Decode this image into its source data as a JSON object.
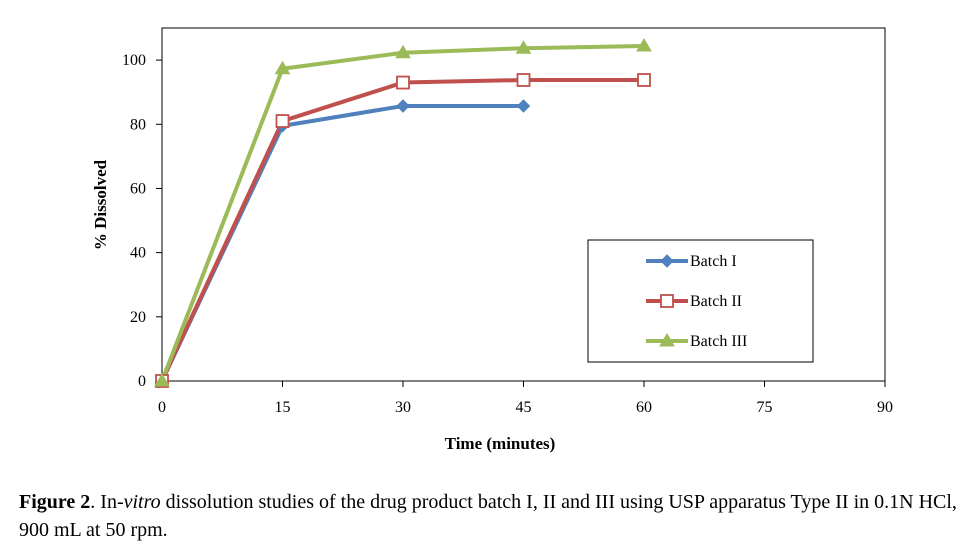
{
  "chart_data": {
    "type": "line",
    "title": "",
    "xlabel": "Time (minutes)",
    "ylabel": "% Dissolved",
    "xlim": [
      0,
      90
    ],
    "ylim": [
      0,
      110
    ],
    "xticks": [
      0,
      15,
      30,
      45,
      60,
      75,
      90
    ],
    "yticks": [
      0,
      20,
      40,
      60,
      80,
      100
    ],
    "grid": false,
    "legend_position": "lower-right",
    "series": [
      {
        "name": "Batch I",
        "color": "#4F81BD",
        "marker": "diamond",
        "x": [
          0,
          15,
          30,
          45
        ],
        "y": [
          0,
          79.5,
          85.7,
          85.7
        ]
      },
      {
        "name": "Batch II",
        "color": "#C0504D",
        "marker": "square-open",
        "x": [
          0,
          15,
          30,
          45,
          60
        ],
        "y": [
          0,
          81,
          93,
          93.8,
          93.8
        ]
      },
      {
        "name": "Batch III",
        "color": "#9BBB59",
        "marker": "triangle",
        "x": [
          0,
          15,
          30,
          45,
          60
        ],
        "y": [
          0,
          97.3,
          102.3,
          103.7,
          104.4
        ]
      }
    ]
  },
  "caption": {
    "label": "Figure 2",
    "part1": ". In-",
    "italic": "vitro",
    "part2": " dissolution studies of the drug product batch I, II and III using USP apparatus Type II in 0.1N HCl, 900 mL at 50 rpm."
  }
}
